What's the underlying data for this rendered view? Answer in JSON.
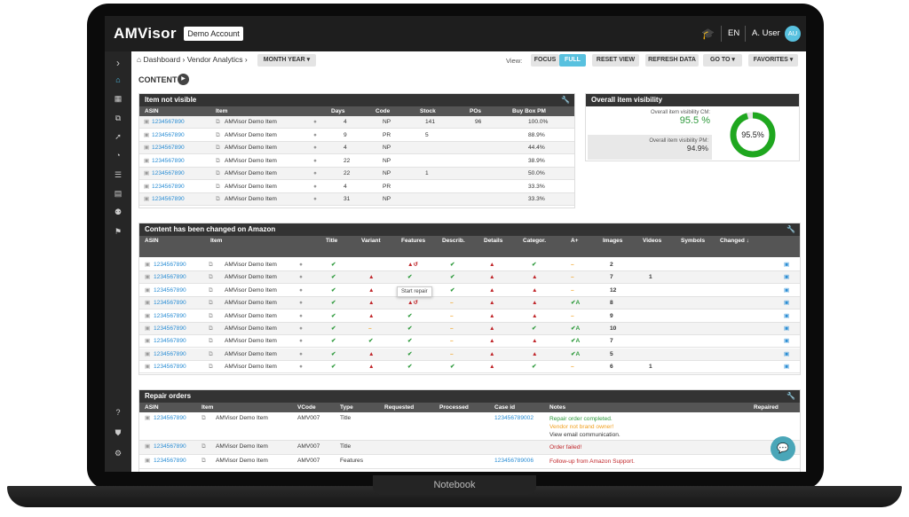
{
  "brand": {
    "name": "AMVisor"
  },
  "topbar": {
    "account": "Demo Account",
    "language": "EN",
    "user": "A. User",
    "initials": "AU"
  },
  "device": {
    "label": "Notebook"
  },
  "breadcrumb": {
    "home": "Dashboard",
    "section": "Vendor Analytics",
    "period": "MONTH YEAR ▾"
  },
  "toolbar": {
    "view_label": "View:",
    "focus": "FOCUS",
    "full": "FULL",
    "reset": "RESET VIEW",
    "refresh": "REFRESH DATA",
    "goto": "GO TO ▾",
    "favorites": "FAVORITES ▾"
  },
  "content": {
    "heading": "CONTENT"
  },
  "not_visible": {
    "title": "Item not visible",
    "headers": [
      "ASIN",
      "Item",
      "Days",
      "Code",
      "Stock",
      "POs",
      "Buy Box PM"
    ],
    "rows": [
      {
        "asin": "1234567890",
        "item": "AMVisor Demo Item",
        "days": "4",
        "code": "NP",
        "stock": "141",
        "pos": "96",
        "buybox": "100.0%"
      },
      {
        "asin": "1234567890",
        "item": "AMVisor Demo Item",
        "days": "9",
        "code": "PR",
        "stock": "5",
        "pos": "",
        "buybox": "88.9%"
      },
      {
        "asin": "1234567890",
        "item": "AMVisor Demo Item",
        "days": "4",
        "code": "NP",
        "stock": "",
        "pos": "",
        "buybox": "44.4%"
      },
      {
        "asin": "1234567890",
        "item": "AMVisor Demo Item",
        "days": "22",
        "code": "NP",
        "stock": "",
        "pos": "",
        "buybox": "38.9%"
      },
      {
        "asin": "1234567890",
        "item": "AMVisor Demo Item",
        "days": "22",
        "code": "NP",
        "stock": "1",
        "pos": "",
        "buybox": "50.0%"
      },
      {
        "asin": "1234567890",
        "item": "AMVisor Demo Item",
        "days": "4",
        "code": "PR",
        "stock": "",
        "pos": "",
        "buybox": "33.3%"
      },
      {
        "asin": "1234567890",
        "item": "AMVisor Demo Item",
        "days": "31",
        "code": "NP",
        "stock": "",
        "pos": "",
        "buybox": "33.3%"
      }
    ]
  },
  "visibility": {
    "title": "Overall item visibility",
    "cm_label": "Overall item visibility CM:",
    "cm_value": "95.5 %",
    "pm_label": "Overall item visibility PM:",
    "pm_value": "94.9%",
    "donut_label": "95.5%",
    "donut_fraction": 0.955
  },
  "changed": {
    "title": "Content has been changed on Amazon",
    "headers": [
      "ASIN",
      "Item",
      "Title",
      "Variant",
      "Features",
      "Describ.",
      "Details",
      "Categor.",
      "A+",
      "Images",
      "Videos",
      "Symbols",
      "Changed ↓"
    ],
    "tooltip": "Start repair",
    "rows": [
      {
        "asin": "1234567890",
        "item": "AMVisor Demo Item",
        "title": "✔",
        "variant": "",
        "features": "▲↺",
        "describ": "✔",
        "details": "▲",
        "categor": "✔",
        "aplus": "–",
        "images": "2",
        "videos": ""
      },
      {
        "asin": "1234567890",
        "item": "AMVisor Demo Item",
        "title": "✔",
        "variant": "▲",
        "features": "✔",
        "describ": "✔",
        "details": "▲",
        "categor": "▲",
        "aplus": "–",
        "images": "7",
        "videos": "1"
      },
      {
        "asin": "1234567890",
        "item": "AMVisor Demo Item",
        "title": "✔",
        "variant": "▲",
        "features": "",
        "describ": "✔",
        "details": "▲",
        "categor": "▲",
        "aplus": "–",
        "images": "12",
        "videos": ""
      },
      {
        "asin": "1234567890",
        "item": "AMVisor Demo Item",
        "title": "✔",
        "variant": "▲",
        "features": "▲↺",
        "describ": "–",
        "details": "▲",
        "categor": "▲",
        "aplus": "✔A",
        "images": "8",
        "videos": ""
      },
      {
        "asin": "1234567890",
        "item": "AMVisor Demo Item",
        "title": "✔",
        "variant": "▲",
        "features": "✔",
        "describ": "–",
        "details": "▲",
        "categor": "▲",
        "aplus": "–",
        "images": "9",
        "videos": ""
      },
      {
        "asin": "1234567890",
        "item": "AMVisor Demo Item",
        "title": "✔",
        "variant": "–",
        "features": "✔",
        "describ": "–",
        "details": "▲",
        "categor": "✔",
        "aplus": "✔A",
        "images": "10",
        "videos": ""
      },
      {
        "asin": "1234567890",
        "item": "AMVisor Demo Item",
        "title": "✔",
        "variant": "✔",
        "features": "✔",
        "describ": "–",
        "details": "▲",
        "categor": "▲",
        "aplus": "✔A",
        "images": "7",
        "videos": ""
      },
      {
        "asin": "1234567890",
        "item": "AMVisor Demo Item",
        "title": "✔",
        "variant": "▲",
        "features": "✔",
        "describ": "–",
        "details": "▲",
        "categor": "▲",
        "aplus": "✔A",
        "images": "5",
        "videos": ""
      },
      {
        "asin": "1234567890",
        "item": "AMVisor Demo Item",
        "title": "✔",
        "variant": "▲",
        "features": "✔",
        "describ": "✔",
        "details": "▲",
        "categor": "✔",
        "aplus": "–",
        "images": "6",
        "videos": "1"
      }
    ]
  },
  "repair": {
    "title": "Repair orders",
    "headers": [
      "ASIN",
      "Item",
      "VCode",
      "Type",
      "Requested",
      "Processed",
      "Case id",
      "Notes",
      "Repaired"
    ],
    "rows": [
      {
        "asin": "1234567890",
        "item": "AMVisor Demo Item",
        "vcode": "AMV007",
        "type": "Title",
        "case": "123456789002",
        "notes": [
          {
            "text": "Repair order completed.",
            "color": "#2e9a3c"
          },
          {
            "text": "Vendor not brand owner!",
            "color": "#f0a020"
          },
          {
            "text": "View email communication.",
            "color": "#333333"
          }
        ]
      },
      {
        "asin": "1234567890",
        "item": "AMVisor Demo Item",
        "vcode": "AMV007",
        "type": "Title",
        "case": "",
        "notes": [
          {
            "text": "Order failed!",
            "color": "#c0262a"
          }
        ]
      },
      {
        "asin": "1234567890",
        "item": "AMVisor Demo Item",
        "vcode": "AMV007",
        "type": "Features",
        "case": "123456789006",
        "notes": [
          {
            "text": "Follow-up from Amazon Support.",
            "color": "#c0262a"
          }
        ]
      }
    ]
  },
  "colors": {
    "accent": "#58c1df",
    "link": "#2a8dd4",
    "ok": "#2e9a3c",
    "alert": "#c0262a",
    "warn": "#f0a020",
    "donut": "#1fa71f"
  }
}
